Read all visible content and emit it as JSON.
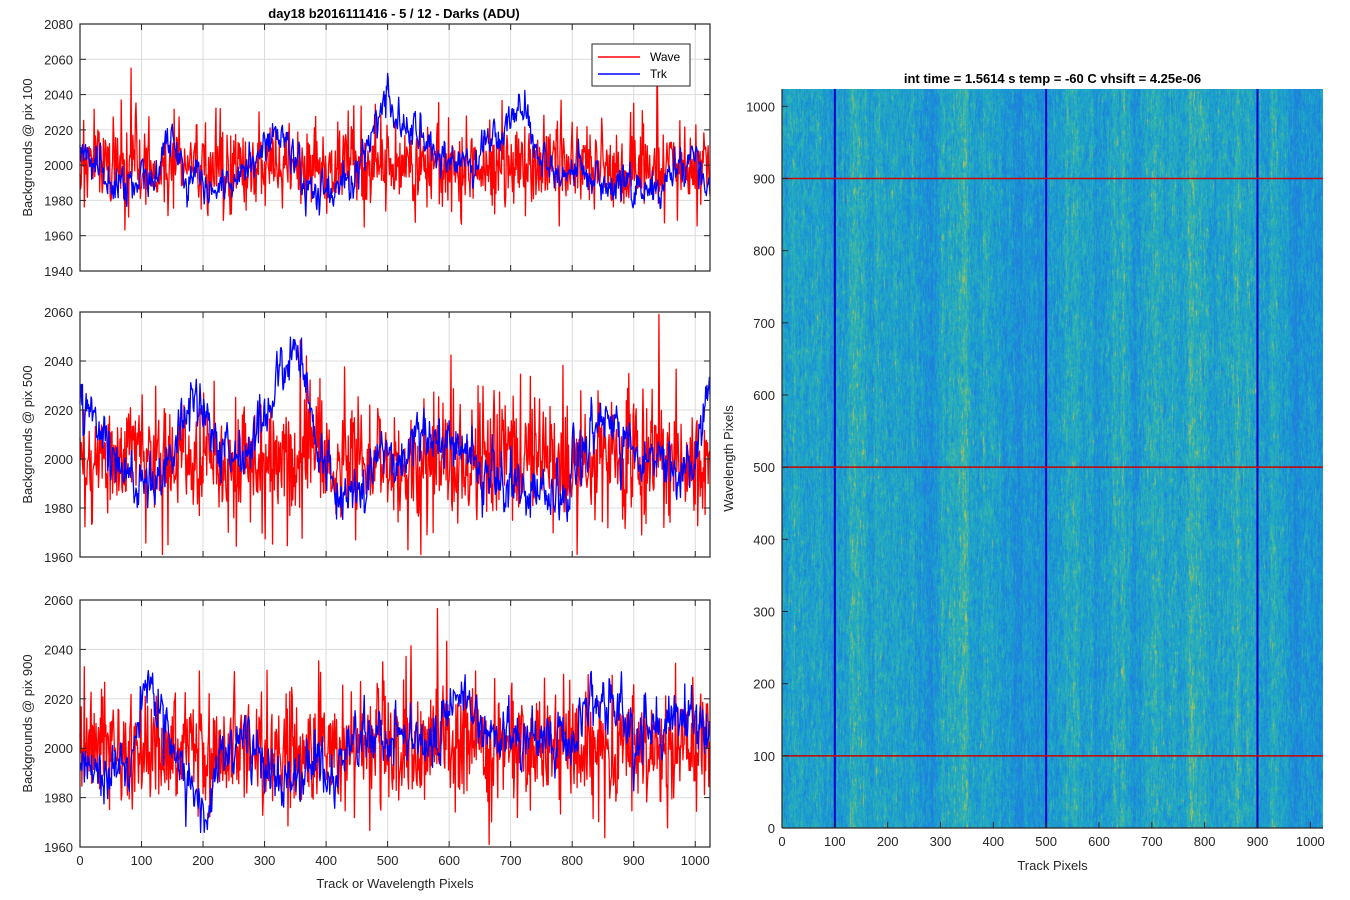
{
  "figure_title": "day18 b2016111416 - 5 / 12 - Darks (ADU)",
  "colors": {
    "wave": "#ff0000",
    "trk": "#0000ff",
    "grid": "#dcdcdc",
    "axis": "#262626"
  },
  "chart_data": [
    {
      "type": "line",
      "title": "day18 b2016111416 - 5 / 12 - Darks (ADU)",
      "ylabel": "Backgrounds @ pix 100",
      "xlabel": "",
      "xlim": [
        0,
        1024
      ],
      "ylim": [
        1940,
        2080
      ],
      "xticks": [
        0,
        100,
        200,
        300,
        400,
        500,
        600,
        700,
        800,
        900,
        1000
      ],
      "yticks": [
        1940,
        1960,
        1980,
        2000,
        2020,
        2040,
        2060,
        2080
      ],
      "grid": true,
      "legend": "top-right",
      "series": [
        {
          "name": "Wave",
          "color": "#ff0000",
          "noise": 12,
          "anchors": [
            [
              0,
              2000
            ],
            [
              100,
              2000
            ],
            [
              200,
              2000
            ],
            [
              300,
              2000
            ],
            [
              400,
              2000
            ],
            [
              500,
              2000
            ],
            [
              600,
              2000
            ],
            [
              700,
              2000
            ],
            [
              800,
              2000
            ],
            [
              900,
              2000
            ],
            [
              1024,
              2000
            ]
          ]
        },
        {
          "name": "Trk",
          "color": "#0000ff",
          "noise": 5,
          "anchors": [
            [
              0,
              2010
            ],
            [
              30,
              2000
            ],
            [
              60,
              1988
            ],
            [
              100,
              1992
            ],
            [
              130,
              1995
            ],
            [
              150,
              2018
            ],
            [
              170,
              1990
            ],
            [
              230,
              1985
            ],
            [
              270,
              1998
            ],
            [
              300,
              2012
            ],
            [
              330,
              2018
            ],
            [
              370,
              1988
            ],
            [
              410,
              1982
            ],
            [
              450,
              1995
            ],
            [
              480,
              2025
            ],
            [
              500,
              2043
            ],
            [
              520,
              2020
            ],
            [
              560,
              2015
            ],
            [
              600,
              1998
            ],
            [
              640,
              2005
            ],
            [
              670,
              2015
            ],
            [
              700,
              2025
            ],
            [
              720,
              2030
            ],
            [
              750,
              2000
            ],
            [
              790,
              1993
            ],
            [
              820,
              2000
            ],
            [
              860,
              1985
            ],
            [
              900,
              1983
            ],
            [
              940,
              1988
            ],
            [
              980,
              2000
            ],
            [
              1000,
              2010
            ],
            [
              1024,
              1980
            ]
          ]
        }
      ]
    },
    {
      "type": "line",
      "ylabel": "Backgrounds @ pix 500",
      "xlabel": "",
      "xlim": [
        0,
        1024
      ],
      "ylim": [
        1960,
        2060
      ],
      "xticks": [
        0,
        100,
        200,
        300,
        400,
        500,
        600,
        700,
        800,
        900,
        1000
      ],
      "yticks": [
        1960,
        1980,
        2000,
        2020,
        2040,
        2060
      ],
      "grid": true,
      "series": [
        {
          "name": "Wave",
          "color": "#ff0000",
          "noise": 12,
          "anchors": [
            [
              0,
              2000
            ],
            [
              200,
              2000
            ],
            [
              400,
              2000
            ],
            [
              600,
              2000
            ],
            [
              800,
              2000
            ],
            [
              1024,
              2000
            ]
          ]
        },
        {
          "name": "Trk",
          "color": "#0000ff",
          "noise": 5,
          "anchors": [
            [
              0,
              2022
            ],
            [
              20,
              2015
            ],
            [
              60,
              1995
            ],
            [
              100,
              1988
            ],
            [
              130,
              1990
            ],
            [
              160,
              2010
            ],
            [
              190,
              2025
            ],
            [
              210,
              2012
            ],
            [
              240,
              1998
            ],
            [
              280,
              2008
            ],
            [
              300,
              2020
            ],
            [
              330,
              2030
            ],
            [
              360,
              2040
            ],
            [
              380,
              2010
            ],
            [
              420,
              1985
            ],
            [
              460,
              1990
            ],
            [
              480,
              2003
            ],
            [
              520,
              1998
            ],
            [
              560,
              2010
            ],
            [
              590,
              2005
            ],
            [
              620,
              2003
            ],
            [
              680,
              1990
            ],
            [
              720,
              1992
            ],
            [
              750,
              1985
            ],
            [
              790,
              1990
            ],
            [
              830,
              2010
            ],
            [
              860,
              2015
            ],
            [
              900,
              2000
            ],
            [
              940,
              2005
            ],
            [
              980,
              1993
            ],
            [
              1000,
              2000
            ],
            [
              1024,
              2035
            ]
          ]
        }
      ]
    },
    {
      "type": "line",
      "ylabel": "Backgrounds @ pix 900",
      "xlabel": "Track or Wavelength Pixels",
      "xlim": [
        0,
        1024
      ],
      "ylim": [
        1960,
        2060
      ],
      "xticks": [
        0,
        100,
        200,
        300,
        400,
        500,
        600,
        700,
        800,
        900,
        1000
      ],
      "yticks": [
        1960,
        1980,
        2000,
        2020,
        2040,
        2060
      ],
      "grid": true,
      "series": [
        {
          "name": "Wave",
          "color": "#ff0000",
          "noise": 12,
          "anchors": [
            [
              0,
              2000
            ],
            [
              200,
              2000
            ],
            [
              400,
              2000
            ],
            [
              600,
              2000
            ],
            [
              800,
              2000
            ],
            [
              1024,
              2000
            ]
          ]
        },
        {
          "name": "Trk",
          "color": "#0000ff",
          "noise": 5,
          "anchors": [
            [
              0,
              1995
            ],
            [
              40,
              1985
            ],
            [
              80,
              1995
            ],
            [
              110,
              2025
            ],
            [
              150,
              2005
            ],
            [
              180,
              1985
            ],
            [
              210,
              1975
            ],
            [
              240,
              2000
            ],
            [
              270,
              2003
            ],
            [
              300,
              1995
            ],
            [
              330,
              1985
            ],
            [
              380,
              1995
            ],
            [
              410,
              1988
            ],
            [
              440,
              2000
            ],
            [
              480,
              2005
            ],
            [
              520,
              2005
            ],
            [
              560,
              2000
            ],
            [
              590,
              2012
            ],
            [
              620,
              2025
            ],
            [
              650,
              2010
            ],
            [
              680,
              2005
            ],
            [
              720,
              2005
            ],
            [
              760,
              2005
            ],
            [
              800,
              2000
            ],
            [
              830,
              2020
            ],
            [
              860,
              2018
            ],
            [
              900,
              2008
            ],
            [
              940,
              2005
            ],
            [
              980,
              2013
            ],
            [
              1000,
              2010
            ],
            [
              1024,
              2005
            ]
          ]
        }
      ]
    },
    {
      "type": "heatmap",
      "title": "int time = 1.5614 s    temp = -60 C    vhsift = 4.25e-06",
      "xlabel": "Track Pixels",
      "ylabel": "Wavelength Pixels",
      "xlim": [
        0,
        1024
      ],
      "ylim": [
        0,
        1024
      ],
      "xticks": [
        0,
        100,
        200,
        300,
        400,
        500,
        600,
        700,
        800,
        900,
        1000
      ],
      "yticks": [
        0,
        100,
        200,
        300,
        400,
        500,
        600,
        700,
        800,
        900,
        1000
      ],
      "colormap": [
        "#1f7fdd",
        "#19a0cf",
        "#35b6ab",
        "#c8c248"
      ],
      "marker_columns": [
        100,
        500,
        900
      ],
      "marker_rows": [
        100,
        500,
        900
      ],
      "marker_column_color": "#0000cc",
      "marker_row_color": "#cc0000"
    }
  ]
}
